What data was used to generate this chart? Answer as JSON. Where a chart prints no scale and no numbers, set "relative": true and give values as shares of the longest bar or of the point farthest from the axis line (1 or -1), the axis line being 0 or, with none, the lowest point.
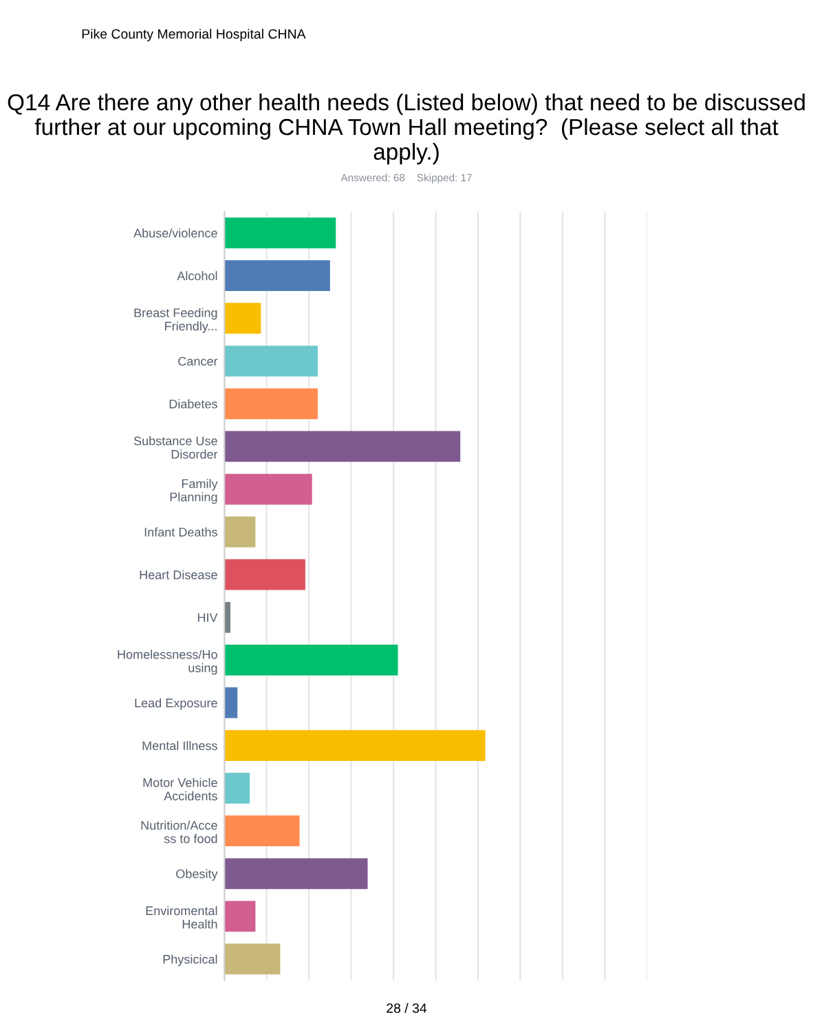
{
  "chart_data": {
    "type": "bar",
    "orientation": "horizontal",
    "relative": true,
    "title": "Q14 Are there any other health needs (Listed below) that need to be discussed further at our upcoming CHNA Town Hall meeting?  (Please select all that apply.)",
    "subtitle": "Answered: 68    Skipped: 17",
    "annotations": [
      "Pike County Memorial Hospital CHNA",
      "28 / 34"
    ],
    "categories": [
      "Abuse/violence",
      "Alcohol",
      "Breast Feeding\nFriendly...",
      "Cancer",
      "Diabetes",
      "Substance Use\nDisorder",
      "Family\nPlanning",
      "Infant Deaths",
      "Heart Disease",
      "HIV",
      "Homelessness/Ho\nusing",
      "Lead Exposure",
      "Mental Illness",
      "Motor Vehicle\nAccidents",
      "Nutrition/Acce\nss to food",
      "Obesity",
      "Enviromental\nHealth",
      "Physicical"
    ],
    "values": [
      0.427,
      0.405,
      0.14,
      0.358,
      0.358,
      0.904,
      0.336,
      0.119,
      0.31,
      0.023,
      0.665,
      0.05,
      1,
      0.097,
      0.288,
      0.549,
      0.119,
      0.214
    ],
    "colors": [
      "#00bf6f",
      "#507cb6",
      "#f9be00",
      "#6bc8cd",
      "#ff8b4f",
      "#7f5a8f",
      "#d25f90",
      "#c7b879",
      "#de5260",
      "#768086",
      "#00bf6f",
      "#507cb6",
      "#f9be00",
      "#6bc8cd",
      "#ff8b4f",
      "#7f5a8f",
      "#d25f90",
      "#c7b879"
    ],
    "grid": "x"
  }
}
